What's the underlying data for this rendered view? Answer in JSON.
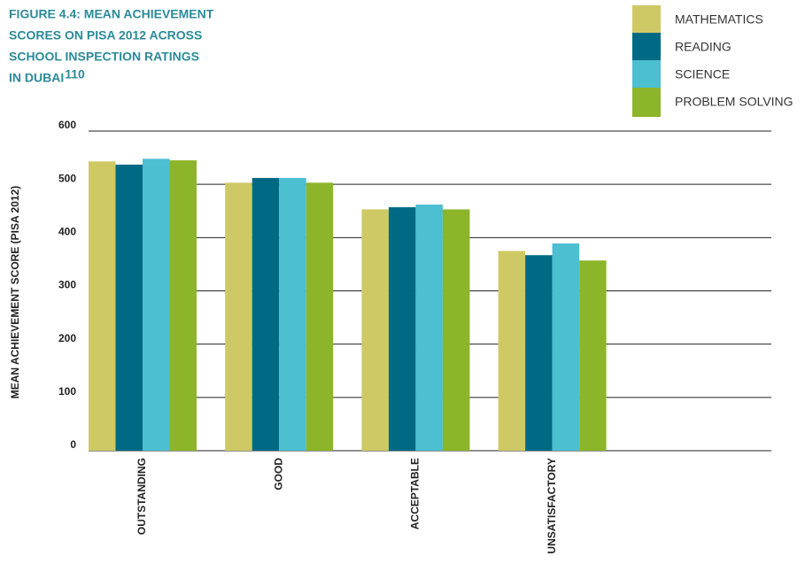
{
  "chart_data": {
    "type": "bar",
    "title": [
      "FIGURE 4.4: MEAN ACHIEVEMENT",
      "SCORES ON PISA 2012 ACROSS",
      "SCHOOL INSPECTION RATINGS",
      "IN DUBAI"
    ],
    "footnote_ref": "110",
    "y_label": "MEAN ACHIEVEMENT SCORE (PISA 2012)",
    "categories": [
      "OUTSTANDING",
      "GOOD",
      "ACCEPTABLE",
      "UNSATISFACTORY",
      null
    ],
    "series": [
      {
        "name": "MATHEMATICS",
        "color": "#cfc965",
        "values": [
          543,
          503,
          453,
          375,
          null
        ]
      },
      {
        "name": "READING",
        "color": "#006a85",
        "values": [
          537,
          512,
          457,
          367,
          null
        ]
      },
      {
        "name": "SCIENCE",
        "color": "#4cbfd0",
        "values": [
          548,
          512,
          462,
          389,
          null
        ]
      },
      {
        "name": "PROBLEM SOLVING",
        "color": "#8db52a",
        "values": [
          545,
          503,
          453,
          357,
          null
        ]
      }
    ],
    "ylim": [
      0,
      600
    ],
    "yticks": [
      0,
      100,
      200,
      300,
      400,
      500,
      600
    ],
    "grid": true,
    "legend": "top-right"
  }
}
